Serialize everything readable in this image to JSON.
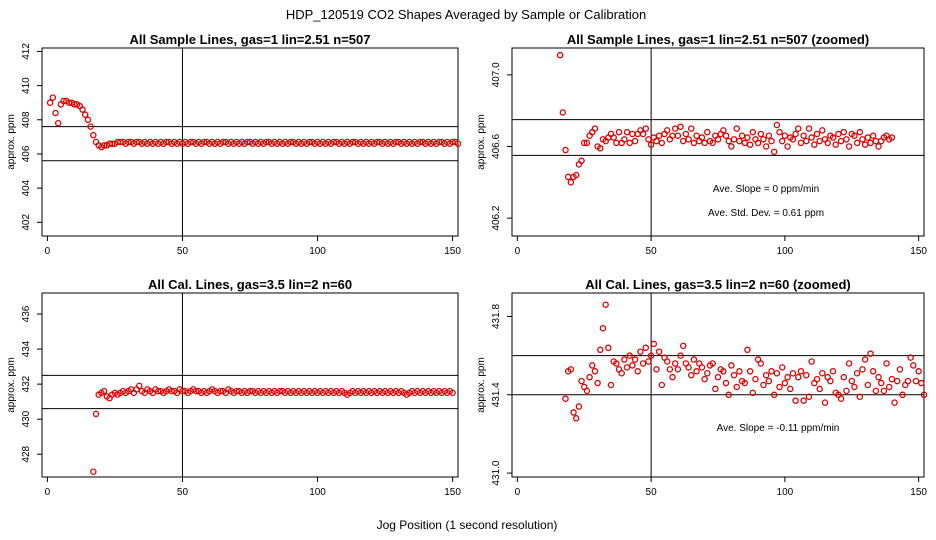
{
  "page": {
    "title": "HDP_120519  CO2 Shapes Averaged by Sample or Calibration",
    "xlabel": "Jog Position (1 second resolution)"
  },
  "colors": {
    "points": "#e00000",
    "lines": "#000000"
  },
  "chart_data": [
    {
      "id": "p1",
      "type": "scatter",
      "title": "All Sample Lines, gas=1 lin=2.51 n=507",
      "ylabel": "approx. ppm",
      "xlim": [
        -2,
        152
      ],
      "ylim": [
        401.2,
        412.2
      ],
      "xticks": [
        0,
        50,
        100,
        150
      ],
      "yticks": [
        402,
        404,
        406,
        408,
        410,
        412
      ],
      "vline": 50,
      "hlines": [
        405.6,
        407.6
      ],
      "annotations": [],
      "series": [
        {
          "x_start": 1,
          "values": [
            409.0,
            409.3,
            408.4,
            407.8,
            408.9,
            409.1,
            409.1,
            409.0,
            409.0,
            408.9,
            408.9,
            408.8,
            408.6,
            408.3,
            408.0,
            407.6,
            407.1,
            406.7,
            406.5,
            406.4,
            406.5,
            406.5,
            406.6,
            406.6,
            406.6,
            406.7,
            406.7,
            406.7,
            406.6,
            406.7,
            406.7,
            406.6,
            406.7,
            406.7,
            406.6,
            406.7,
            406.6,
            406.7,
            406.6,
            406.7,
            406.6,
            406.7,
            406.6,
            406.7,
            406.7,
            406.6,
            406.7,
            406.6,
            406.7,
            406.6,
            406.7,
            406.6,
            406.7,
            406.7,
            406.6,
            406.7,
            406.6,
            406.7,
            406.7,
            406.6,
            406.7,
            406.6,
            406.7,
            406.6,
            406.7,
            406.7,
            406.6,
            406.7,
            406.6,
            406.7,
            406.6,
            406.7,
            406.6,
            406.7,
            406.7,
            406.6,
            406.7,
            406.6,
            406.7,
            406.6,
            406.7,
            406.7,
            406.6,
            406.7,
            406.6,
            406.7,
            406.6,
            406.7,
            406.6,
            406.7,
            406.7,
            406.6,
            406.7,
            406.6,
            406.7,
            406.6,
            406.7,
            406.7,
            406.6,
            406.7,
            406.6,
            406.7,
            406.6,
            406.7,
            406.6,
            406.7,
            406.7,
            406.6,
            406.7,
            406.6,
            406.7,
            406.6,
            406.7,
            406.7,
            406.6,
            406.7,
            406.6,
            406.7,
            406.6,
            406.7,
            406.6,
            406.7,
            406.7,
            406.6,
            406.7,
            406.6,
            406.7,
            406.6,
            406.7,
            406.7,
            406.6,
            406.7,
            406.6,
            406.7,
            406.6,
            406.7,
            406.6,
            406.7,
            406.7,
            406.6,
            406.7,
            406.6,
            406.7,
            406.6,
            406.7,
            406.7,
            406.6,
            406.7,
            406.6,
            406.7,
            406.7,
            406.6
          ]
        }
      ]
    },
    {
      "id": "p2",
      "type": "scatter",
      "title": "All Sample Lines, gas=1 lin=2.51 n=507 (zoomed)",
      "ylabel": "approx. ppm",
      "xlim": [
        -2,
        152
      ],
      "ylim": [
        406.1,
        407.15
      ],
      "xticks": [
        0,
        50,
        100,
        150
      ],
      "yticks": [
        406.2,
        406.6,
        407.0
      ],
      "vline": 50,
      "hlines": [
        406.55,
        406.75
      ],
      "annotations": [
        "Ave. Slope =  0  ppm/min",
        "Ave. Std. Dev. =  0.61  ppm"
      ],
      "series": [
        {
          "x_start": 16,
          "values": [
            407.11,
            406.79,
            406.58,
            406.43,
            406.4,
            406.43,
            406.44,
            406.5,
            406.52,
            406.62,
            406.62,
            406.66,
            406.68,
            406.7,
            406.6,
            406.59,
            406.64,
            406.63,
            406.65,
            406.67,
            406.65,
            406.62,
            406.68,
            406.62,
            406.64,
            406.68,
            406.62,
            406.67,
            406.63,
            406.67,
            406.69,
            406.67,
            406.7,
            406.64,
            406.61,
            406.65,
            406.63,
            406.66,
            406.62,
            406.67,
            406.69,
            406.64,
            406.66,
            406.7,
            406.66,
            406.71,
            406.63,
            406.67,
            406.64,
            406.7,
            406.62,
            406.66,
            406.63,
            406.65,
            406.62,
            406.68,
            406.63,
            406.62,
            406.66,
            406.64,
            406.67,
            406.69,
            406.66,
            406.63,
            406.6,
            406.64,
            406.7,
            406.63,
            406.66,
            406.62,
            406.65,
            406.61,
            406.68,
            406.64,
            406.62,
            406.67,
            406.64,
            406.6,
            406.66,
            406.63,
            406.57,
            406.72,
            406.68,
            406.63,
            406.66,
            406.6,
            406.65,
            406.64,
            406.67,
            406.7,
            406.62,
            406.66,
            406.63,
            406.7,
            406.65,
            406.61,
            406.67,
            406.63,
            406.69,
            406.64,
            406.62,
            406.66,
            406.65,
            406.61,
            406.67,
            406.63,
            406.68,
            406.64,
            406.6,
            406.67,
            406.66,
            406.62,
            406.68,
            406.64,
            406.61,
            406.65,
            406.62,
            406.66,
            406.63,
            406.6,
            406.63,
            406.65,
            406.66,
            406.64,
            406.65
          ]
        }
      ]
    },
    {
      "id": "p3",
      "type": "scatter",
      "title": "All Cal. Lines, gas=3.5 lin=2 n=60",
      "ylabel": "approx. ppm",
      "xlim": [
        -2,
        152
      ],
      "ylim": [
        426.7,
        437.2
      ],
      "xticks": [
        0,
        50,
        100,
        150
      ],
      "yticks": [
        428,
        430,
        432,
        434,
        436
      ],
      "vline": 50,
      "hlines": [
        430.6,
        432.5
      ],
      "annotations": [],
      "series": [
        {
          "x_start": 17,
          "values": [
            427.0,
            430.3,
            431.4,
            431.5,
            431.6,
            431.3,
            431.2,
            431.4,
            431.5,
            431.4,
            431.5,
            431.6,
            431.5,
            431.6,
            431.7,
            431.5,
            431.7,
            431.9,
            431.6,
            431.5,
            431.7,
            431.6,
            431.5,
            431.7,
            431.6,
            431.6,
            431.5,
            431.6,
            431.7,
            431.6,
            431.6,
            431.5,
            431.7,
            431.6,
            431.6,
            431.5,
            431.6,
            431.7,
            431.6,
            431.6,
            431.5,
            431.6,
            431.5,
            431.6,
            431.7,
            431.6,
            431.5,
            431.6,
            431.6,
            431.5,
            431.7,
            431.6,
            431.5,
            431.6,
            431.6,
            431.5,
            431.6,
            431.5,
            431.6,
            431.6,
            431.5,
            431.6,
            431.5,
            431.6,
            431.5,
            431.6,
            431.5,
            431.6,
            431.5,
            431.6,
            431.6,
            431.5,
            431.6,
            431.5,
            431.6,
            431.5,
            431.6,
            431.5,
            431.6,
            431.5,
            431.6,
            431.5,
            431.6,
            431.5,
            431.6,
            431.5,
            431.6,
            431.5,
            431.6,
            431.5,
            431.6,
            431.5,
            431.6,
            431.5,
            431.4,
            431.5,
            431.6,
            431.5,
            431.6,
            431.5,
            431.6,
            431.5,
            431.6,
            431.5,
            431.6,
            431.5,
            431.6,
            431.5,
            431.6,
            431.5,
            431.6,
            431.5,
            431.6,
            431.5,
            431.6,
            431.5,
            431.4,
            431.5,
            431.6,
            431.5,
            431.6,
            431.5,
            431.6,
            431.5,
            431.6,
            431.5,
            431.6,
            431.5,
            431.6,
            431.5,
            431.6,
            431.5,
            431.6,
            431.5
          ]
        }
      ]
    },
    {
      "id": "p4",
      "type": "scatter",
      "title": "All Cal. Lines, gas=3.5 lin=2 n=60 (zoomed)",
      "ylabel": "approx. ppm",
      "xlim": [
        -2,
        152
      ],
      "ylim": [
        430.98,
        431.92
      ],
      "xticks": [
        0,
        50,
        100,
        150
      ],
      "yticks": [
        431.0,
        431.4,
        431.8
      ],
      "vline": 50,
      "hlines": [
        431.4,
        431.6
      ],
      "annotations": [
        "Ave. Slope =  -0.11  ppm/min"
      ],
      "series": [
        {
          "x_start": 18,
          "values": [
            431.38,
            431.52,
            431.53,
            431.31,
            431.28,
            431.34,
            431.47,
            431.44,
            431.42,
            431.49,
            431.55,
            431.52,
            431.46,
            431.63,
            431.74,
            431.86,
            431.64,
            431.45,
            431.57,
            431.56,
            431.53,
            431.51,
            431.58,
            431.54,
            431.6,
            431.55,
            431.58,
            431.52,
            431.62,
            431.56,
            431.64,
            431.57,
            431.6,
            431.66,
            431.53,
            431.62,
            431.45,
            431.59,
            431.57,
            431.53,
            431.49,
            431.56,
            431.53,
            431.6,
            431.65,
            431.56,
            431.54,
            431.5,
            431.58,
            431.52,
            431.56,
            431.54,
            431.48,
            431.51,
            431.55,
            431.56,
            431.43,
            431.49,
            431.53,
            431.52,
            431.46,
            431.4,
            431.55,
            431.5,
            431.44,
            431.52,
            431.47,
            431.46,
            431.63,
            431.52,
            431.41,
            431.48,
            431.58,
            431.56,
            431.45,
            431.5,
            431.47,
            431.52,
            431.4,
            431.51,
            431.44,
            431.54,
            431.46,
            431.49,
            431.43,
            431.51,
            431.37,
            431.49,
            431.52,
            431.37,
            431.5,
            431.39,
            431.57,
            431.46,
            431.48,
            431.43,
            431.51,
            431.36,
            431.49,
            431.47,
            431.52,
            431.41,
            431.4,
            431.38,
            431.49,
            431.42,
            431.56,
            431.47,
            431.44,
            431.51,
            431.39,
            431.53,
            431.58,
            431.45,
            431.61,
            431.52,
            431.42,
            431.49,
            431.46,
            431.42,
            431.56,
            431.44,
            431.48,
            431.36,
            431.47,
            431.53,
            431.4,
            431.45,
            431.47,
            431.59,
            431.55,
            431.47,
            431.52,
            431.46,
            431.4,
            431.52,
            431.44,
            431.57,
            431.49,
            431.39,
            431.51,
            431.46,
            431.53
          ]
        }
      ]
    }
  ]
}
